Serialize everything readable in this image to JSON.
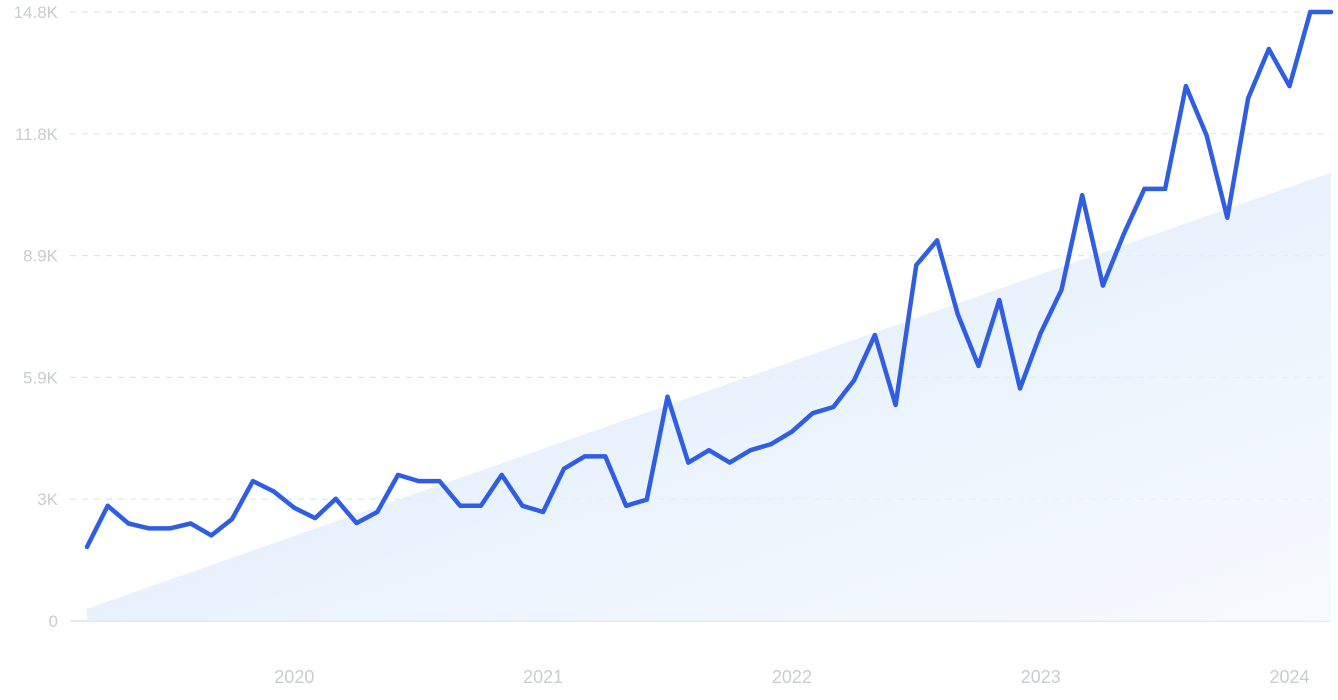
{
  "chart_data": {
    "type": "line",
    "title": "",
    "xlabel": "",
    "ylabel": "",
    "ylim": [
      0,
      14800
    ],
    "xlim": [
      "2019-03",
      "2024-03"
    ],
    "grid": true,
    "y_ticks": [
      {
        "value": 0,
        "label": "0"
      },
      {
        "value": 2960,
        "label": "3K"
      },
      {
        "value": 5920,
        "label": "5.9K"
      },
      {
        "value": 8880,
        "label": "8.9K"
      },
      {
        "value": 11840,
        "label": "11.8K"
      },
      {
        "value": 14800,
        "label": "14.8K"
      }
    ],
    "x_ticks": [
      {
        "value": "2020-01",
        "label": "2020"
      },
      {
        "value": "2021-01",
        "label": "2021"
      },
      {
        "value": "2022-01",
        "label": "2022"
      },
      {
        "value": "2023-01",
        "label": "2023"
      },
      {
        "value": "2024-01",
        "label": "2024"
      }
    ],
    "trend": {
      "start": {
        "x": "2019-03",
        "y": 300
      },
      "end": {
        "x": "2024-03",
        "y": 10900
      }
    },
    "series": [
      {
        "x": [
          "2019-03",
          "2019-04",
          "2019-05",
          "2019-06",
          "2019-07",
          "2019-08",
          "2019-09",
          "2019-10",
          "2019-11",
          "2019-12",
          "2020-01",
          "2020-02",
          "2020-03",
          "2020-04",
          "2020-05",
          "2020-06",
          "2020-07",
          "2020-08",
          "2020-09",
          "2020-10",
          "2020-11",
          "2020-12",
          "2021-01",
          "2021-02",
          "2021-03",
          "2021-04",
          "2021-05",
          "2021-06",
          "2021-07",
          "2021-08",
          "2021-09",
          "2021-10",
          "2021-11",
          "2021-12",
          "2022-01",
          "2022-02",
          "2022-03",
          "2022-04",
          "2022-05",
          "2022-06",
          "2022-07",
          "2022-08",
          "2022-09",
          "2022-10",
          "2022-11",
          "2022-12",
          "2023-01",
          "2023-02",
          "2023-03",
          "2023-04",
          "2023-05",
          "2023-06",
          "2023-07",
          "2023-08",
          "2023-09",
          "2023-10",
          "2023-11",
          "2023-12",
          "2024-01",
          "2024-02",
          "2024-03"
        ],
        "values": [
          1800,
          2800,
          2370,
          2250,
          2250,
          2370,
          2080,
          2480,
          3400,
          3150,
          2750,
          2500,
          2970,
          2380,
          2650,
          3550,
          3400,
          3400,
          2800,
          2800,
          3550,
          2800,
          2650,
          3700,
          4000,
          4000,
          2800,
          2950,
          5450,
          3850,
          4150,
          3850,
          4150,
          4300,
          4600,
          5050,
          5200,
          5850,
          6950,
          5250,
          8650,
          9250,
          7450,
          6200,
          7800,
          5650,
          7000,
          8050,
          10350,
          8150,
          9400,
          10500,
          10500,
          13000,
          11800,
          9800,
          12700,
          13900,
          13000,
          14800,
          14800
        ]
      }
    ]
  }
}
